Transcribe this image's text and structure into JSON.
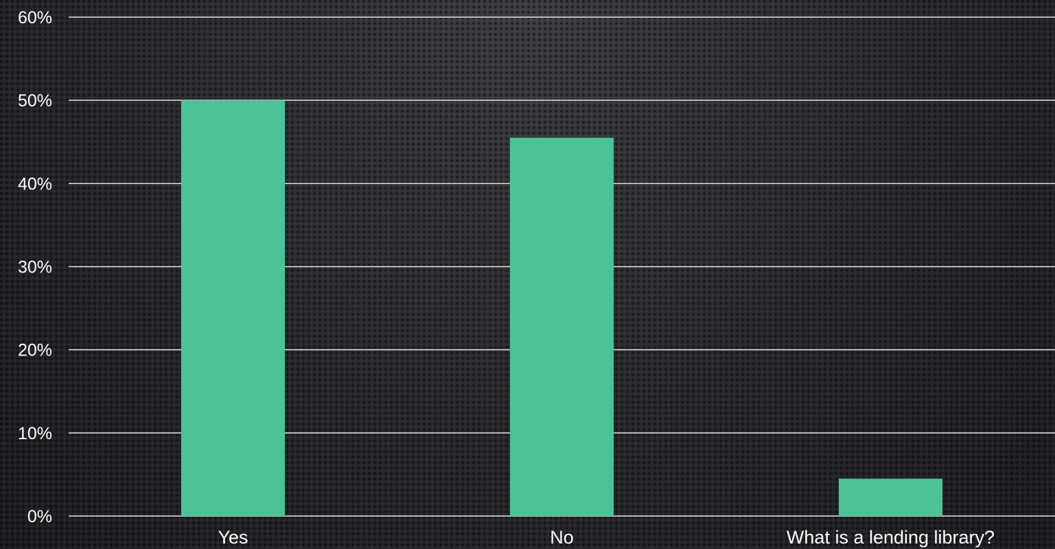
{
  "chart_data": {
    "type": "bar",
    "categories": [
      "Yes",
      "No",
      "What is a lending library?"
    ],
    "values": [
      50,
      45.5,
      4.5
    ],
    "ylim": [
      0,
      60
    ],
    "yticks": [
      0,
      10,
      20,
      30,
      40,
      50,
      60
    ],
    "ytick_labels": [
      "0%",
      "10%",
      "20%",
      "30%",
      "40%",
      "50%",
      "60%"
    ],
    "grid": true,
    "bar_color": "#4cc397",
    "gridline_color": "#e6e6e6",
    "text_color": "#ffffff"
  }
}
